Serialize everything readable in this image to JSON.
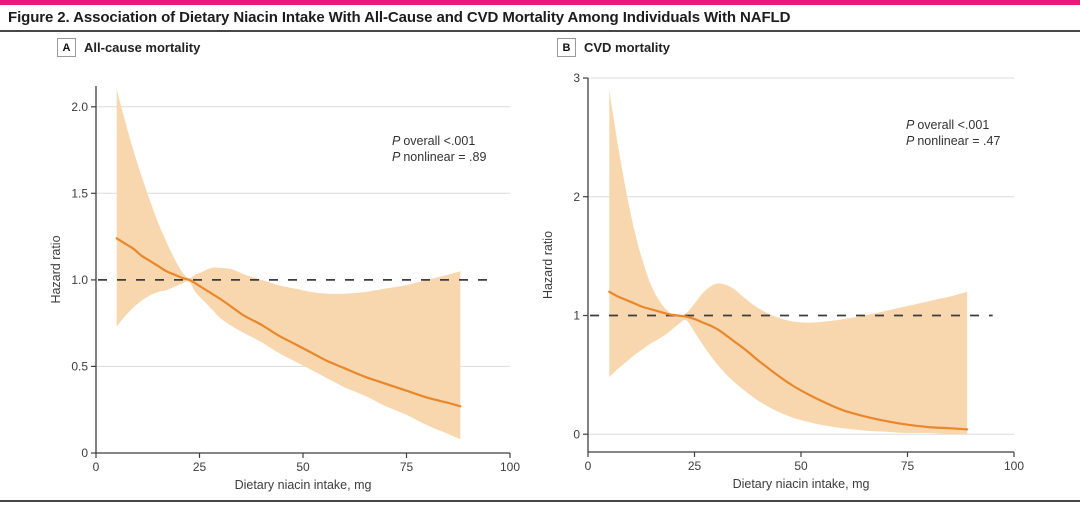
{
  "page": {
    "title": "Figure 2. Association of Dietary Niacin Intake With All-Cause and CVD Mortality Among Individuals With NAFLD",
    "accent_color": "#E8197D"
  },
  "colors": {
    "band": "#F9D7AE",
    "line": "#E8872C",
    "refline": "#3C3C3C",
    "axis": "#3F3F3F",
    "gridline": "#DCDCDC"
  },
  "chart_data": [
    {
      "type": "area",
      "panel_letter": "A",
      "panel_title": "All-cause mortality",
      "xlabel": "Dietary niacin intake, mg",
      "ylabel": "Hazard ratio",
      "xlim": [
        0,
        100
      ],
      "ylim": [
        0,
        2.12
      ],
      "xtick_values": [
        0,
        25,
        50,
        75,
        100
      ],
      "xtick_labels": [
        "0",
        "25",
        "50",
        "75",
        "100"
      ],
      "ytick_values": [
        0,
        0.5,
        1.0,
        1.5,
        2.0
      ],
      "ytick_labels": [
        "0",
        "0.5",
        "1.0",
        "1.5",
        "2.0"
      ],
      "gridlines": [
        0.5,
        1.5,
        2.0
      ],
      "refline": 1.0,
      "refline_x_end": 95,
      "p_label": "P",
      "p_overall": "overall <.001",
      "p_nonlinear": "nonlinear = .89",
      "x": [
        5,
        7,
        9,
        11,
        13,
        15,
        17,
        19,
        21,
        22.5,
        24,
        26,
        28,
        30,
        33,
        36,
        40,
        44,
        48,
        52,
        56,
        60,
        65,
        70,
        75,
        80,
        85,
        88
      ],
      "est": [
        1.24,
        1.21,
        1.18,
        1.14,
        1.11,
        1.08,
        1.05,
        1.03,
        1.01,
        1.0,
        0.98,
        0.95,
        0.92,
        0.89,
        0.84,
        0.79,
        0.74,
        0.68,
        0.63,
        0.58,
        0.53,
        0.49,
        0.44,
        0.4,
        0.36,
        0.32,
        0.29,
        0.27
      ],
      "upper": [
        2.1,
        1.92,
        1.75,
        1.6,
        1.46,
        1.33,
        1.22,
        1.12,
        1.04,
        1.01,
        1.03,
        1.05,
        1.07,
        1.07,
        1.06,
        1.03,
        1.0,
        0.97,
        0.95,
        0.93,
        0.92,
        0.92,
        0.93,
        0.95,
        0.97,
        1.0,
        1.03,
        1.05
      ],
      "lower": [
        0.73,
        0.79,
        0.84,
        0.88,
        0.91,
        0.93,
        0.94,
        0.96,
        0.98,
        0.99,
        0.93,
        0.88,
        0.83,
        0.78,
        0.73,
        0.69,
        0.64,
        0.58,
        0.53,
        0.48,
        0.43,
        0.38,
        0.33,
        0.27,
        0.22,
        0.16,
        0.11,
        0.08
      ]
    },
    {
      "type": "area",
      "panel_letter": "B",
      "panel_title": "CVD mortality",
      "xlabel": "Dietary niacin intake, mg",
      "ylabel": "Hazard ratio",
      "xlim": [
        0,
        100
      ],
      "ylim": [
        -0.15,
        3.0
      ],
      "xtick_values": [
        0,
        25,
        50,
        75,
        100
      ],
      "xtick_labels": [
        "0",
        "25",
        "50",
        "75",
        "100"
      ],
      "ytick_values": [
        0,
        1,
        2,
        3
      ],
      "ytick_labels": [
        "0",
        "1",
        "2",
        "3"
      ],
      "gridlines": [
        0,
        2,
        3
      ],
      "refline": 1.0,
      "refline_x_end": 95,
      "p_label": "P",
      "p_overall": "overall <.001",
      "p_nonlinear": "nonlinear = .47",
      "x": [
        5,
        7,
        9,
        11,
        13,
        15,
        17,
        19,
        21,
        23,
        25,
        27,
        29,
        31,
        34,
        37,
        40,
        44,
        48,
        52,
        56,
        60,
        65,
        70,
        75,
        80,
        85,
        89
      ],
      "est": [
        1.2,
        1.16,
        1.13,
        1.1,
        1.07,
        1.05,
        1.03,
        1.01,
        1.0,
        0.99,
        0.97,
        0.94,
        0.91,
        0.87,
        0.79,
        0.71,
        0.62,
        0.51,
        0.41,
        0.33,
        0.26,
        0.2,
        0.15,
        0.11,
        0.08,
        0.06,
        0.05,
        0.04
      ],
      "upper": [
        2.9,
        2.44,
        2.04,
        1.7,
        1.44,
        1.24,
        1.11,
        1.03,
        1.0,
        1.02,
        1.1,
        1.19,
        1.25,
        1.27,
        1.23,
        1.14,
        1.06,
        0.99,
        0.95,
        0.94,
        0.95,
        0.97,
        1.0,
        1.04,
        1.08,
        1.12,
        1.16,
        1.2
      ],
      "lower": [
        0.48,
        0.55,
        0.61,
        0.67,
        0.72,
        0.77,
        0.81,
        0.86,
        0.92,
        0.96,
        0.86,
        0.75,
        0.65,
        0.56,
        0.45,
        0.36,
        0.28,
        0.2,
        0.14,
        0.1,
        0.07,
        0.05,
        0.03,
        0.02,
        0.01,
        0.01,
        0.0,
        0.0
      ]
    }
  ]
}
